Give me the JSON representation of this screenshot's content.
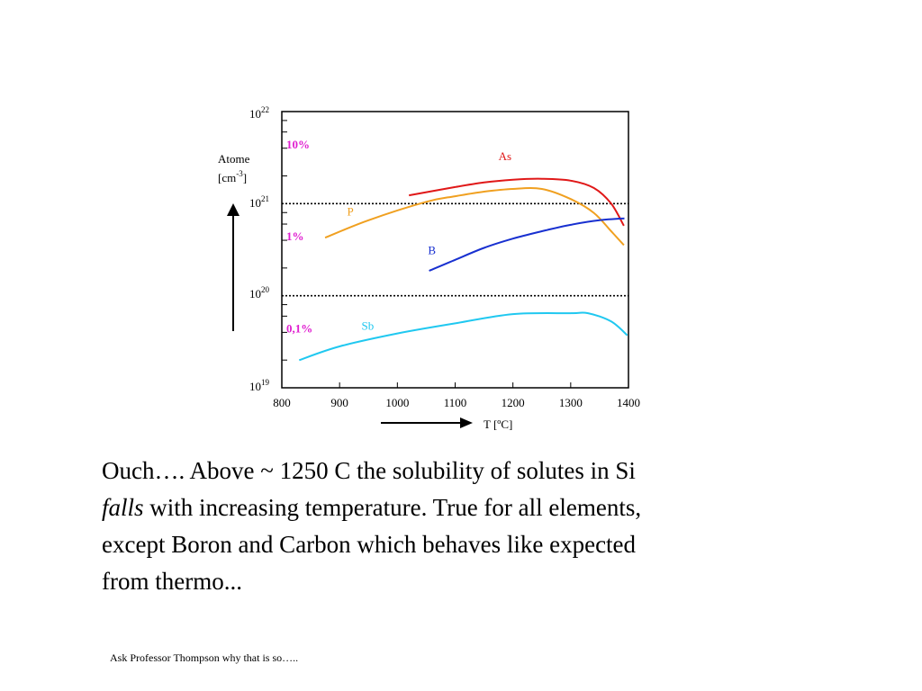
{
  "chart_data": {
    "type": "line",
    "ylabel": {
      "line1": "Atome",
      "line2_base": "[cm",
      "line2_sup": "-3",
      "line2_end": "]"
    },
    "xlabel": "T [ºC]",
    "xlim": [
      800,
      1400
    ],
    "xticks": [
      800,
      900,
      1000,
      1100,
      1200,
      1300,
      1400
    ],
    "ylim_log10": [
      19,
      22
    ],
    "y_scale": "log",
    "yticks": [
      {
        "base": "10",
        "exp": "22",
        "value": 22
      },
      {
        "base": "10",
        "exp": "21",
        "value": 21
      },
      {
        "base": "10",
        "exp": "20",
        "value": 20
      },
      {
        "base": "10",
        "exp": "19",
        "value": 19
      }
    ],
    "reference_lines": [
      {
        "y_log10": 21,
        "style": "dotted"
      },
      {
        "y_log10": 20,
        "style": "dotted"
      }
    ],
    "percent_labels": [
      {
        "text": "10%",
        "y_log10": 21.65
      },
      {
        "text": "1%",
        "y_log10": 20.65
      },
      {
        "text": "0,1%",
        "y_log10": 19.65
      }
    ],
    "percent_label_color": "#e020d0",
    "series": [
      {
        "name": "As",
        "color": "#e01818",
        "x": [
          1020,
          1100,
          1150,
          1200,
          1250,
          1300,
          1340,
          1370,
          1392
        ],
        "y_log10": [
          21.09,
          21.18,
          21.23,
          21.26,
          21.27,
          21.25,
          21.17,
          21.0,
          20.76
        ]
      },
      {
        "name": "P",
        "color": "#f0a020",
        "x": [
          875,
          950,
          1050,
          1100,
          1150,
          1200,
          1250,
          1300,
          1340,
          1370,
          1392
        ],
        "y_log10": [
          20.63,
          20.82,
          21.02,
          21.08,
          21.13,
          21.16,
          21.16,
          21.05,
          20.9,
          20.7,
          20.55
        ]
      },
      {
        "name": "B",
        "color": "#1830d0",
        "x": [
          1055,
          1100,
          1150,
          1200,
          1250,
          1300,
          1350,
          1393
        ],
        "y_log10": [
          20.27,
          20.39,
          20.52,
          20.62,
          20.7,
          20.77,
          20.82,
          20.84
        ]
      },
      {
        "name": "Sb",
        "color": "#20c8f0",
        "x": [
          830,
          900,
          1000,
          1100,
          1200,
          1300,
          1330,
          1370,
          1398
        ],
        "y_log10": [
          19.3,
          19.45,
          19.59,
          19.7,
          19.8,
          19.81,
          19.81,
          19.72,
          19.57
        ]
      }
    ]
  },
  "text": {
    "line1": "Ouch…. Above ~ 1250 C the solubility of solutes in Si",
    "line2_italic": "falls",
    "line2_rest": " with increasing temperature. True for all elements,",
    "line3": "except Boron and Carbon which behaves like expected",
    "line4": "from thermo...",
    "footnote": "Ask Professor Thompson why that is so….."
  }
}
